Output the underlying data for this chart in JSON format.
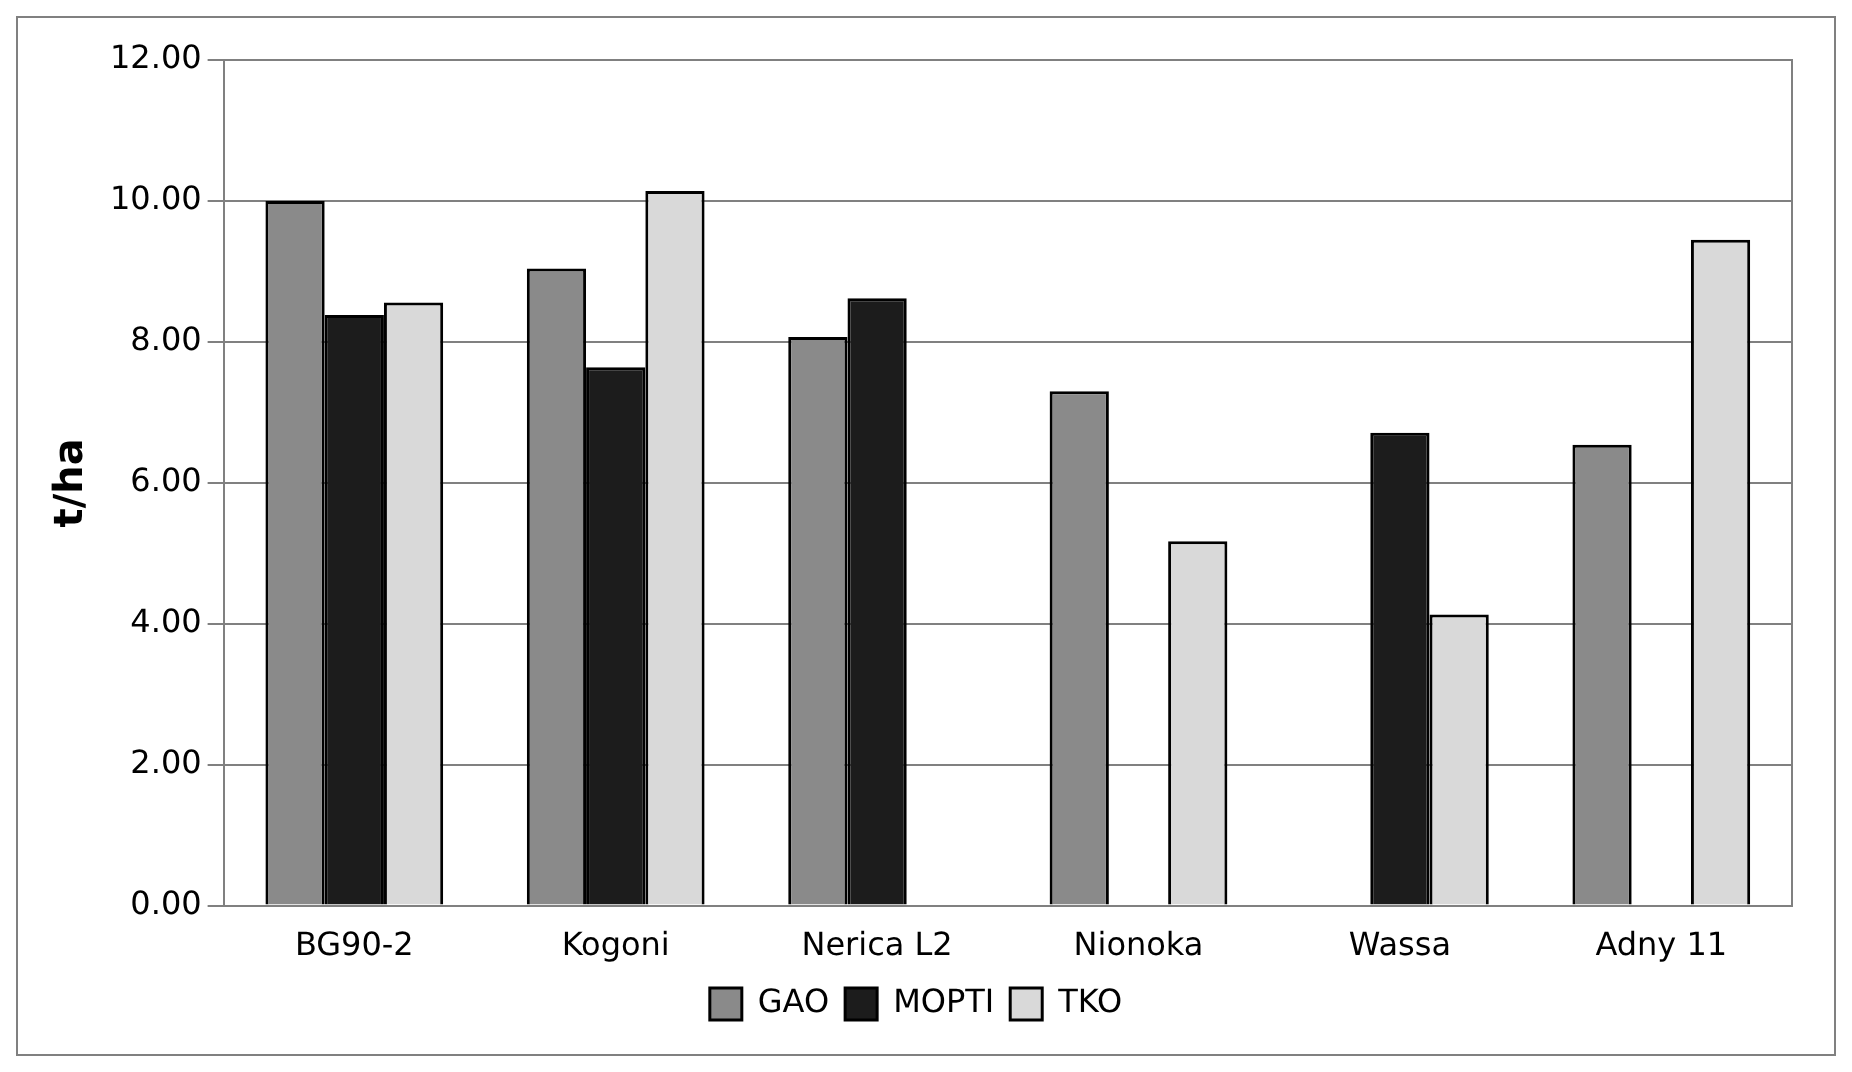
{
  "chart_data": {
    "type": "bar",
    "ylabel": "t/ha",
    "categories": [
      "BG90-2",
      "Kogoni",
      "Nerica L2",
      "Nionoka",
      "Wassa",
      "Adny 11"
    ],
    "series": [
      {
        "name": "GAO",
        "color": "#8a8a8a",
        "values": [
          10.0,
          9.04,
          8.07,
          7.3,
          null,
          6.54
        ]
      },
      {
        "name": "MOPTI",
        "color": "#1c1c1c",
        "values": [
          8.38,
          7.64,
          8.62,
          null,
          6.71,
          null
        ]
      },
      {
        "name": "TKO",
        "color": "#d9d9d9",
        "values": [
          8.56,
          10.14,
          null,
          5.17,
          4.13,
          9.45
        ]
      }
    ],
    "ylim": [
      0,
      12
    ],
    "yticks": [
      {
        "value": 0,
        "label": "0.00"
      },
      {
        "value": 2,
        "label": "2.00"
      },
      {
        "value": 4,
        "label": "4.00"
      },
      {
        "value": 6,
        "label": "6.00"
      },
      {
        "value": 8,
        "label": "8.00"
      },
      {
        "value": 10,
        "label": "10.00"
      },
      {
        "value": 12,
        "label": "12.00"
      }
    ],
    "grid": "y",
    "legend": "bottom"
  }
}
